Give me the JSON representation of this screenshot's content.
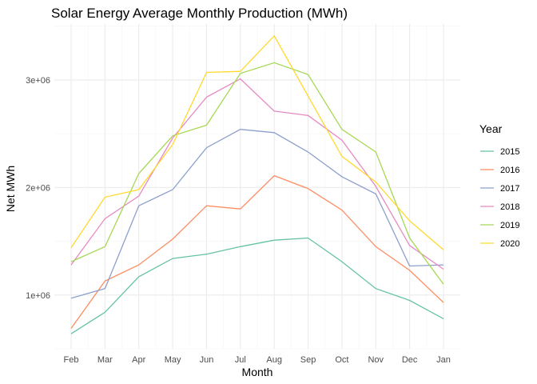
{
  "chart_data": {
    "type": "line",
    "title": "Solar Energy Average Monthly Production (MWh)",
    "xlabel": "Month",
    "ylabel": "Net MWh",
    "categories": [
      "Feb",
      "Mar",
      "Apr",
      "May",
      "Jun",
      "Jul",
      "Aug",
      "Sep",
      "Oct",
      "Nov",
      "Dec",
      "Jan"
    ],
    "yticks": [
      1000000,
      2000000,
      3000000
    ],
    "ytick_labels": [
      "1e+06",
      "2e+06",
      "3e+06"
    ],
    "ylim": [
      500000,
      3520000
    ],
    "grid": true,
    "legend": {
      "title": "Year",
      "position": "right"
    },
    "series": [
      {
        "name": "2015",
        "color": "#66c2a5",
        "values": [
          640000,
          840000,
          1170000,
          1340000,
          1380000,
          1450000,
          1510000,
          1530000,
          1310000,
          1060000,
          950000,
          780000
        ]
      },
      {
        "name": "2016",
        "color": "#fc8d62",
        "values": [
          690000,
          1130000,
          1280000,
          1520000,
          1830000,
          1800000,
          2110000,
          1990000,
          1790000,
          1450000,
          1230000,
          930000
        ]
      },
      {
        "name": "2017",
        "color": "#8da0cb",
        "values": [
          970000,
          1060000,
          1830000,
          1980000,
          2370000,
          2540000,
          2510000,
          2330000,
          2100000,
          1940000,
          1270000,
          1280000
        ]
      },
      {
        "name": "2018",
        "color": "#e78ac3",
        "values": [
          1280000,
          1710000,
          1920000,
          2460000,
          2840000,
          3010000,
          2710000,
          2670000,
          2440000,
          2010000,
          1460000,
          1240000
        ]
      },
      {
        "name": "2019",
        "color": "#a6d854",
        "values": [
          1310000,
          1450000,
          2130000,
          2480000,
          2580000,
          3060000,
          3160000,
          3050000,
          2540000,
          2330000,
          1530000,
          1100000
        ]
      },
      {
        "name": "2020",
        "color": "#ffd92f",
        "values": [
          1440000,
          1910000,
          1980000,
          2400000,
          3070000,
          3080000,
          3410000,
          2850000,
          2290000,
          2050000,
          1690000,
          1420000
        ]
      }
    ]
  }
}
